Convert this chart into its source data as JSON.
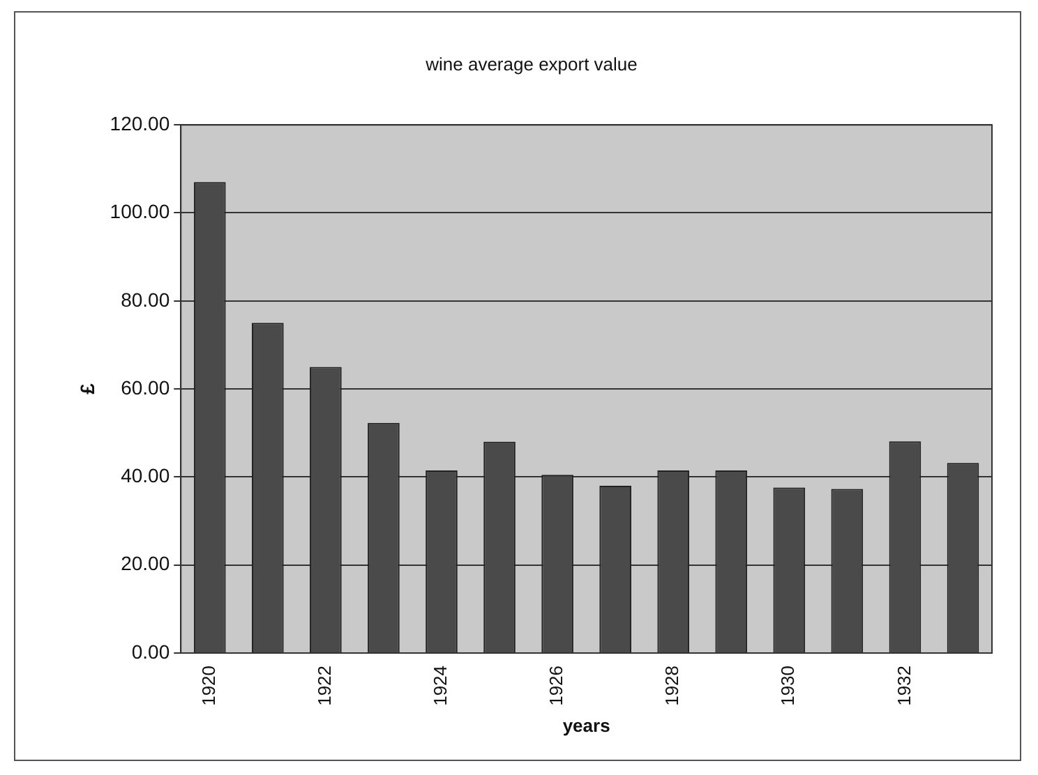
{
  "chart_data": {
    "type": "bar",
    "title": "wine average export value",
    "xlabel": "years",
    "ylabel": "£",
    "categories": [
      "1920",
      null,
      "1922",
      null,
      "1924",
      null,
      "1926",
      null,
      "1928",
      null,
      "1930",
      null,
      "1932",
      null
    ],
    "values": [
      107,
      75,
      65,
      52.3,
      41.5,
      48,
      40.5,
      38,
      41.5,
      41.5,
      37.6,
      37.3,
      48.1,
      43.2
    ],
    "color": "#4a4a4a",
    "ylim": [
      0,
      120
    ],
    "yticks": [
      {
        "value": 0,
        "label": "0.00"
      },
      {
        "value": 20,
        "label": "20.00"
      },
      {
        "value": 40,
        "label": "40.00"
      },
      {
        "value": 60,
        "label": "60.00"
      },
      {
        "value": 80,
        "label": "80.00"
      },
      {
        "value": 100,
        "label": "100.00"
      },
      {
        "value": 120,
        "label": "120.00"
      }
    ],
    "grid": "y",
    "legend": false
  }
}
